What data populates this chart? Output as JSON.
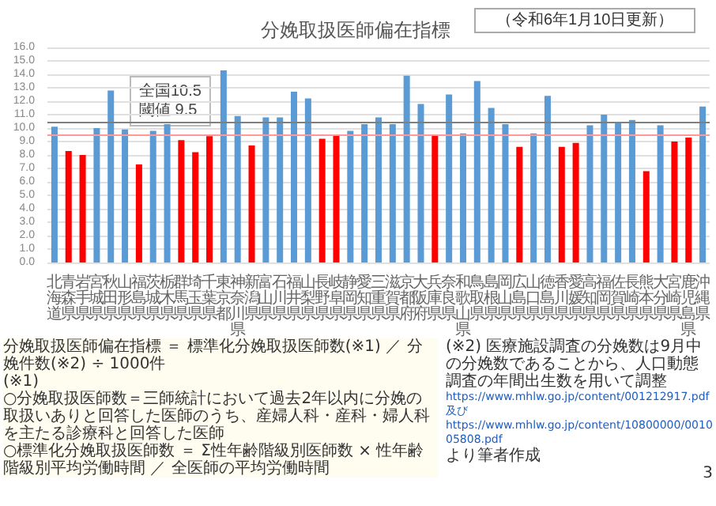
{
  "chart_data": {
    "type": "bar",
    "title": "分娩取扱医師偏在指標",
    "subtitle": "（令和6年1月10日更新）",
    "categories": [
      "北海道",
      "青森県",
      "岩手県",
      "宮城県",
      "秋田県",
      "山形県",
      "福島県",
      "茨城県",
      "栃木県",
      "群馬県",
      "埼玉県",
      "千葉県",
      "東京都",
      "神奈川県",
      "新潟県",
      "富山県",
      "石川県",
      "福井県",
      "山梨県",
      "長野県",
      "岐阜県",
      "静岡県",
      "愛知県",
      "三重県",
      "滋賀県",
      "京都府",
      "大阪府",
      "兵庫県",
      "奈良県",
      "和歌山県",
      "鳥取県",
      "島根県",
      "岡山県",
      "広島県",
      "山口県",
      "徳島県",
      "香川県",
      "愛媛県",
      "高知県",
      "福岡県",
      "佐賀県",
      "長崎県",
      "熊本県",
      "大分県",
      "宮崎県",
      "鹿児島県",
      "沖縄県"
    ],
    "values": [
      10.1,
      8.3,
      8.0,
      10.0,
      12.8,
      9.9,
      7.3,
      9.8,
      10.3,
      9.1,
      8.2,
      9.4,
      14.3,
      10.9,
      8.7,
      10.8,
      10.8,
      12.7,
      12.2,
      9.2,
      9.5,
      9.8,
      10.3,
      10.8,
      10.3,
      13.9,
      11.8,
      9.5,
      12.5,
      9.6,
      13.5,
      11.5,
      10.3,
      8.6,
      9.6,
      12.4,
      8.6,
      8.9,
      10.2,
      11.0,
      10.4,
      10.6,
      6.8,
      10.2,
      9.0,
      9.3,
      11.6
    ],
    "colors": [
      "#5b9bd5",
      "#ff0000",
      "#ff0000",
      "#5b9bd5",
      "#5b9bd5",
      "#5b9bd5",
      "#ff0000",
      "#5b9bd5",
      "#5b9bd5",
      "#ff0000",
      "#ff0000",
      "#ff0000",
      "#5b9bd5",
      "#5b9bd5",
      "#ff0000",
      "#5b9bd5",
      "#5b9bd5",
      "#5b9bd5",
      "#5b9bd5",
      "#ff0000",
      "#ff0000",
      "#5b9bd5",
      "#5b9bd5",
      "#5b9bd5",
      "#5b9bd5",
      "#5b9bd5",
      "#5b9bd5",
      "#ff0000",
      "#5b9bd5",
      "#5b9bd5",
      "#5b9bd5",
      "#5b9bd5",
      "#5b9bd5",
      "#ff0000",
      "#5b9bd5",
      "#5b9bd5",
      "#ff0000",
      "#ff0000",
      "#5b9bd5",
      "#5b9bd5",
      "#5b9bd5",
      "#5b9bd5",
      "#ff0000",
      "#5b9bd5",
      "#ff0000",
      "#ff0000",
      "#5b9bd5"
    ],
    "ylim": [
      0,
      16
    ],
    "yticks": [
      {
        "value": 0,
        "label": "0.0"
      },
      {
        "value": 1,
        "label": "1.0"
      },
      {
        "value": 2,
        "label": "2.0"
      },
      {
        "value": 3,
        "label": "3.0"
      },
      {
        "value": 4,
        "label": "4.0"
      },
      {
        "value": 5,
        "label": "5.0"
      },
      {
        "value": 6,
        "label": "6.0"
      },
      {
        "value": 7,
        "label": "7.0"
      },
      {
        "value": 8,
        "label": "8.0"
      },
      {
        "value": 9,
        "label": "9.0"
      },
      {
        "value": 10,
        "label": "10.0"
      },
      {
        "value": 11,
        "label": "11.0"
      },
      {
        "value": 12,
        "label": "12.0"
      },
      {
        "value": 13,
        "label": "13.0"
      },
      {
        "value": 14,
        "label": "14.0"
      },
      {
        "value": 15,
        "label": "15.0"
      },
      {
        "value": 16,
        "label": "16.0"
      }
    ],
    "grid": "y",
    "ref_lines": [
      {
        "axis": "y",
        "value": 10.5,
        "color": "#7f7f7f"
      },
      {
        "axis": "y",
        "value": 9.5,
        "color": "#ff9999"
      }
    ],
    "annotations": [
      "全国10.5\n閾値 9.5",
      "分娩取扱医師偏在指標 ＝ 標準化分娩取扱医師数(※1) ／ 分娩件数(※2) ÷ 1000件",
      "(※1)",
      "○分娩取扱医師数＝三師統計において過去2年以内に分娩の取扱いありと回答した医師のうち、産婦人科・産科・婦人科を主たる診療科と回答した医師",
      "○標準化分娩取扱医師数 ＝ Σ性年齢階級別医師数 × 性年齢階級別平均労働時間 ／ 全医師の平均労働時間",
      "(※2) 医療施設調査の分娩数は9月中の分娩数であることから、人口動態調査の年間出生数を用いて調整",
      "https://www.mhlw.go.jp/content/001212917.pdf　及び",
      "https://www.mhlw.go.jp/content/10800000/001005808.pdf",
      "より筆者作成",
      "3"
    ]
  }
}
